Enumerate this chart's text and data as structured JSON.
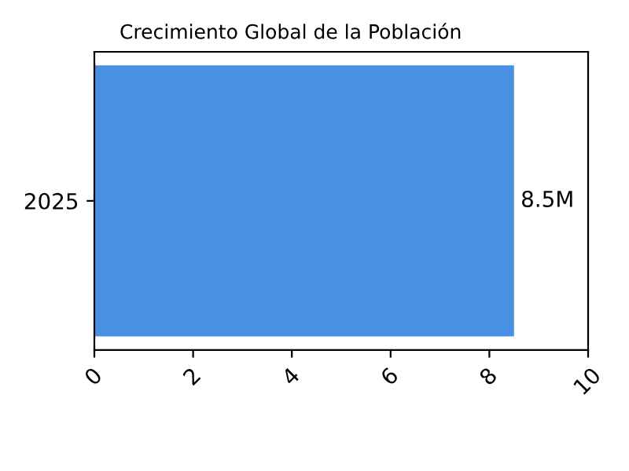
{
  "chart_data": {
    "type": "bar",
    "orientation": "horizontal",
    "title": "Crecimiento Global de la Población",
    "categories": [
      "2025"
    ],
    "values": [
      8.5
    ],
    "color": "#4a90e2",
    "value_labels": [
      "8.5M"
    ],
    "xlim": [
      0,
      10
    ],
    "xticks": [
      0,
      2,
      4,
      6,
      8,
      10
    ],
    "grid": false
  }
}
